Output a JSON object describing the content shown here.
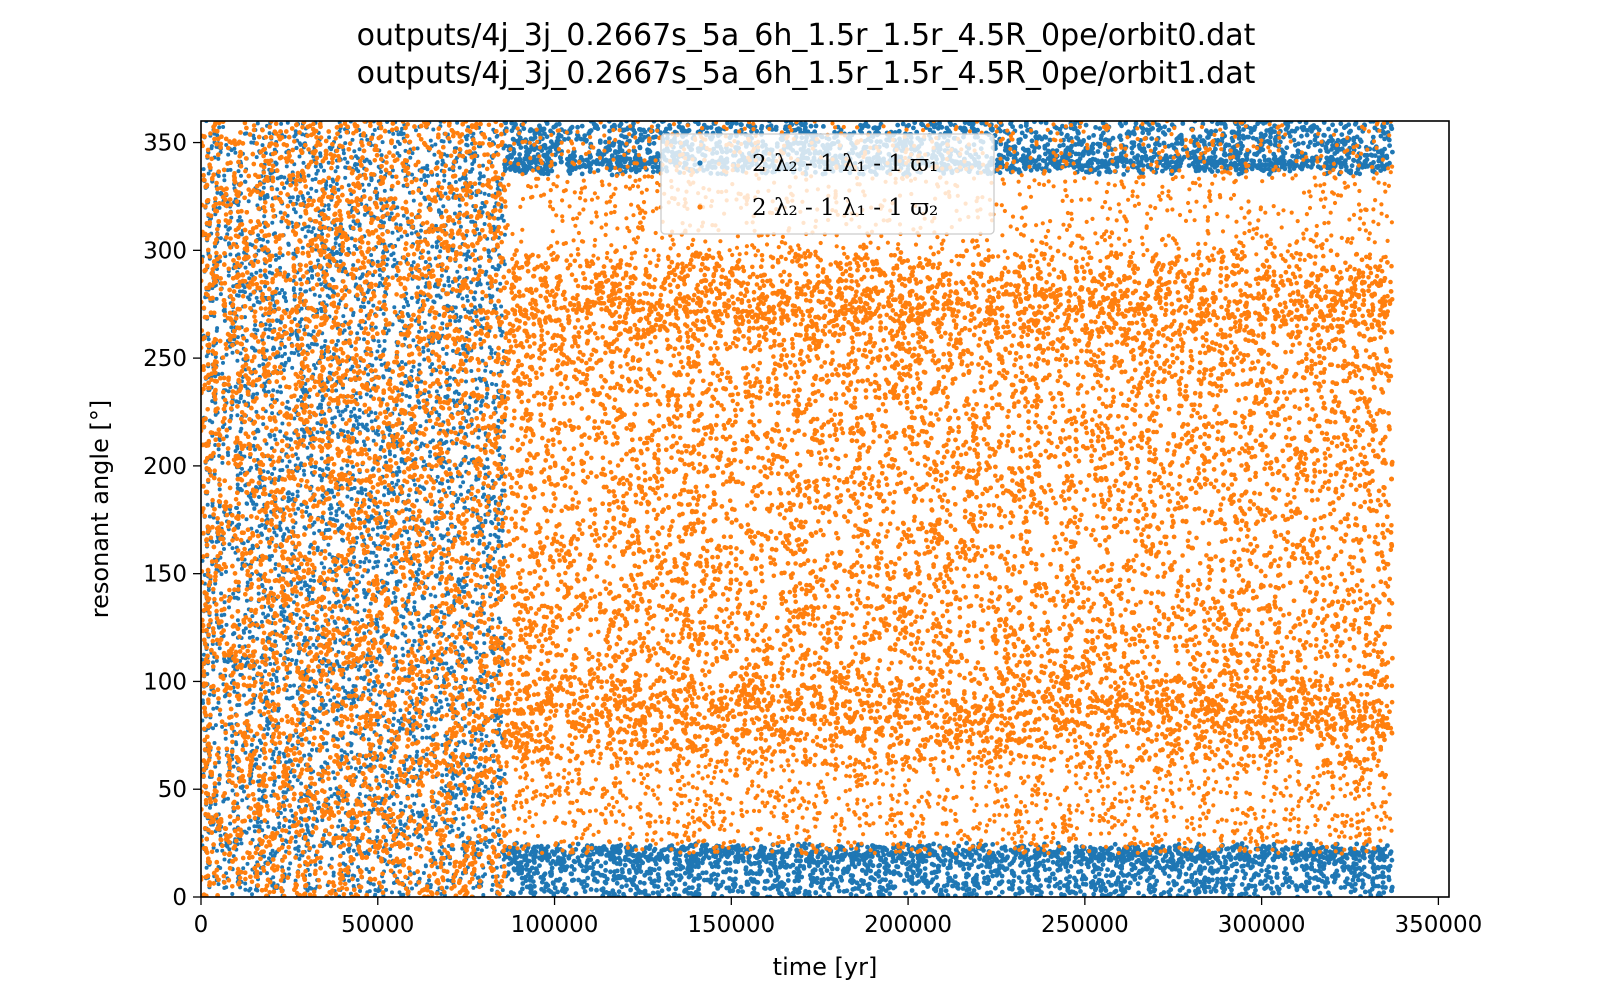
{
  "chart_data": {
    "type": "scatter",
    "title_lines": [
      "outputs/4j_3j_0.2667s_5a_6h_1.5r_1.5r_4.5R_0pe/orbit0.dat",
      "outputs/4j_3j_0.2667s_5a_6h_1.5r_1.5r_4.5R_0pe/orbit1.dat"
    ],
    "xlabel": "time [yr]",
    "ylabel": "resonant angle [°]",
    "xlim": [
      0,
      353000
    ],
    "ylim": [
      0,
      360
    ],
    "xticks": [
      0,
      50000,
      100000,
      150000,
      200000,
      250000,
      300000,
      350000
    ],
    "xtick_labels": [
      "0",
      "50000",
      "100000",
      "150000",
      "200000",
      "250000",
      "300000",
      "350000"
    ],
    "yticks": [
      0,
      50,
      100,
      150,
      200,
      250,
      300,
      350
    ],
    "ytick_labels": [
      "0",
      "50",
      "100",
      "150",
      "200",
      "250",
      "300",
      "350"
    ],
    "grid": false,
    "legend_position": "upper-center",
    "series": [
      {
        "legend": "2 λ₂ - 1 λ₁ - 1 ϖ₁",
        "color": "#1f77b4",
        "regimes": [
          {
            "x_range": [
              0,
              86000
            ],
            "behavior": "circulating",
            "y_range": [
              0,
              360
            ]
          },
          {
            "x_range": [
              86000,
              337000
            ],
            "behavior": "librating about 0",
            "y_range": [
              -25,
              25
            ]
          }
        ]
      },
      {
        "legend": "2 λ₂ - 1 λ₁ - 1 ϖ₂",
        "color": "#ff7f0e",
        "regimes": [
          {
            "x_range": [
              0,
              86000
            ],
            "behavior": "circulating",
            "y_range": [
              0,
              360
            ]
          },
          {
            "x_range": [
              86000,
              337000
            ],
            "behavior": "librating about 180",
            "y_range": [
              60,
              300
            ]
          }
        ]
      }
    ]
  }
}
